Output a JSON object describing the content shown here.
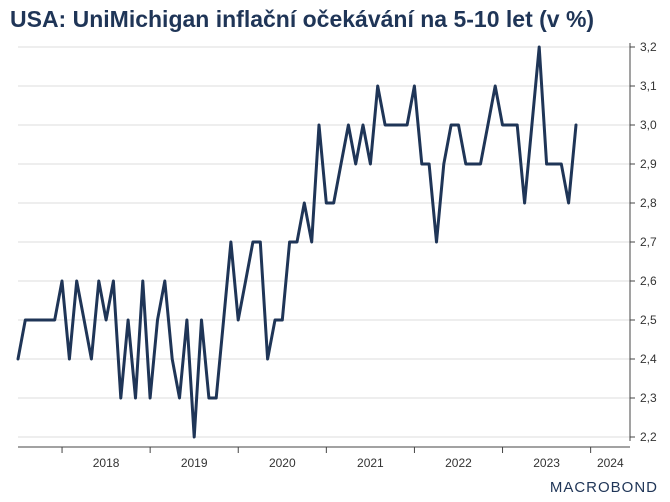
{
  "title": "USA: UniMichigan inflační očekávání na 5-10 let (v %)",
  "brand": "MACROBOND",
  "colors": {
    "line": "#1f3557",
    "grid": "#dddddd",
    "axis": "#444444",
    "title": "#1f3557"
  },
  "chart_data": {
    "type": "line",
    "title": "USA: UniMichigan inflační očekávání na 5-10 let (v %)",
    "xlabel": "",
    "ylabel": "",
    "ylim": [
      2.2,
      3.2
    ],
    "yticks": [
      "3,2",
      "3,1",
      "3,0",
      "2,9",
      "2,8",
      "2,7",
      "2,6",
      "2,5",
      "2,4",
      "2,3",
      "2,2"
    ],
    "xticks": [
      "2018",
      "2019",
      "2020",
      "2021",
      "2022",
      "2023",
      "2024"
    ],
    "x_range": [
      "2017-07",
      "2024-05"
    ],
    "grid": true,
    "series": [
      {
        "x": [
          "2017-07",
          "2017-08",
          "2017-09",
          "2017-10",
          "2017-11",
          "2017-12",
          "2018-01",
          "2018-02",
          "2018-03",
          "2018-04",
          "2018-05",
          "2018-06",
          "2018-07",
          "2018-08",
          "2018-09",
          "2018-10",
          "2018-11",
          "2018-12",
          "2019-01",
          "2019-02",
          "2019-03",
          "2019-04",
          "2019-05",
          "2019-06",
          "2019-07",
          "2019-08",
          "2019-09",
          "2019-10",
          "2019-11",
          "2019-12",
          "2020-01",
          "2020-02",
          "2020-03",
          "2020-04",
          "2020-05",
          "2020-06",
          "2020-07",
          "2020-08",
          "2020-09",
          "2020-10",
          "2020-11",
          "2020-12",
          "2021-01",
          "2021-02",
          "2021-03",
          "2021-04",
          "2021-05",
          "2021-06",
          "2021-07",
          "2021-08",
          "2021-09",
          "2021-10",
          "2021-11",
          "2021-12",
          "2022-01",
          "2022-02",
          "2022-03",
          "2022-04",
          "2022-05",
          "2022-06",
          "2022-07",
          "2022-08",
          "2022-09",
          "2022-10",
          "2022-11",
          "2022-12",
          "2023-01",
          "2023-02",
          "2023-03",
          "2023-04",
          "2023-05",
          "2023-06",
          "2023-07",
          "2023-08",
          "2023-09",
          "2023-10",
          "2023-11",
          "2023-12",
          "2024-01",
          "2024-02",
          "2024-03",
          "2024-04"
        ],
        "values": [
          2.4,
          2.5,
          2.5,
          2.5,
          2.5,
          2.5,
          2.6,
          2.4,
          2.6,
          2.5,
          2.4,
          2.6,
          2.5,
          2.6,
          2.3,
          2.5,
          2.3,
          2.6,
          2.3,
          2.5,
          2.6,
          2.4,
          2.3,
          2.5,
          2.2,
          2.5,
          2.3,
          2.3,
          2.5,
          2.7,
          2.5,
          2.6,
          2.7,
          2.7,
          2.4,
          2.5,
          2.5,
          2.7,
          2.7,
          2.8,
          2.7,
          3.0,
          2.8,
          2.8,
          2.9,
          3.0,
          2.9,
          3.0,
          2.9,
          3.1,
          3.0,
          3.0,
          3.0,
          3.0,
          3.1,
          2.9,
          2.9,
          2.7,
          2.9,
          3.0,
          3.0,
          2.9,
          2.9,
          2.9,
          3.0,
          3.1,
          3.0,
          3.0,
          3.0,
          2.8,
          3.0,
          3.2,
          2.9,
          2.9,
          2.9,
          2.8,
          3.0,
          null,
          null,
          null,
          null,
          null
        ]
      }
    ]
  }
}
